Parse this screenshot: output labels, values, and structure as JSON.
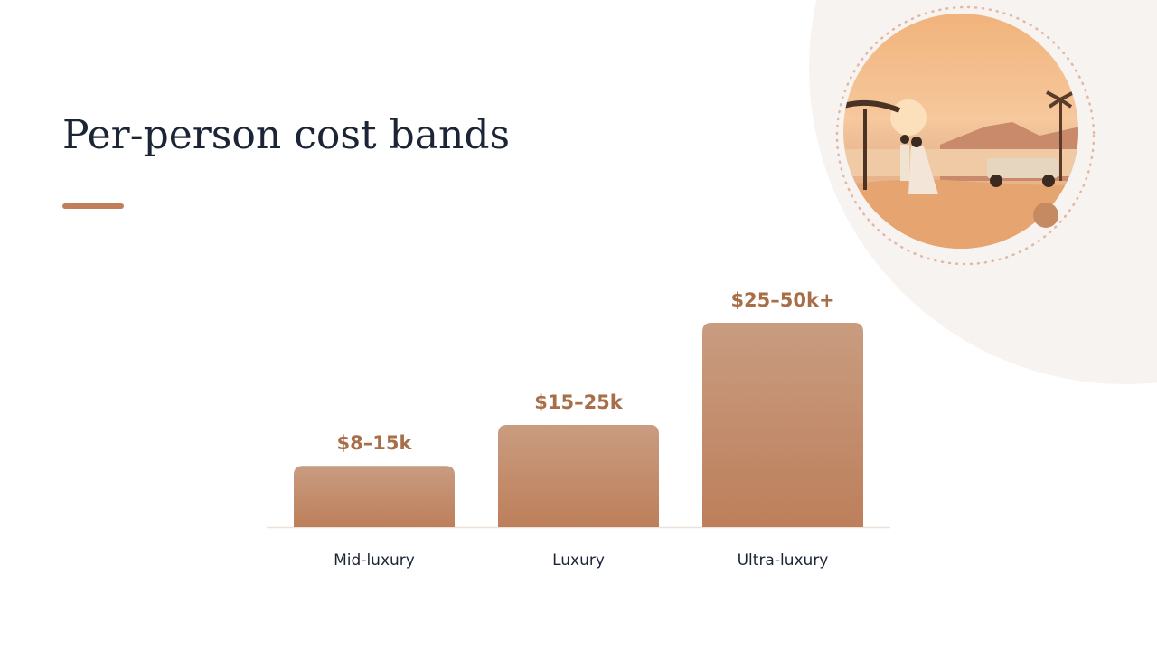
{
  "chart_data": {
    "type": "bar",
    "title": "Per-person cost bands",
    "categories": [
      "Mid-luxury",
      "Luxury",
      "Ultra-luxury"
    ],
    "values": [
      15,
      25,
      50
    ],
    "value_labels": [
      "$8–15k",
      "$15–25k",
      "$25–50k+"
    ],
    "color": "#c4896a"
  }
}
